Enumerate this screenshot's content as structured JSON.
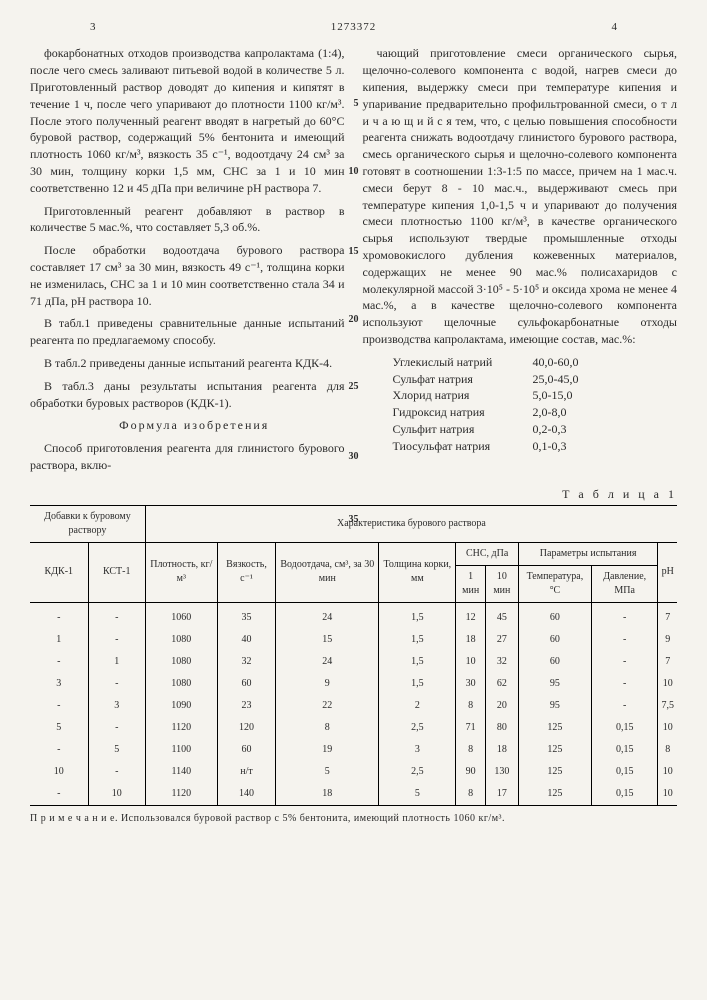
{
  "header": {
    "doc_number": "1273372",
    "left_page": "3",
    "right_page": "4"
  },
  "left_column": {
    "p1": "фокарбонатных отходов производства капролактама (1:4), после чего смесь заливают питьевой водой в количестве 5 л. Приготовленный раствор доводят до кипения и кипятят в течение 1 ч, после чего упаривают до плотности 1100 кг/м³. После этого полученный реагент вводят в нагретый до 60°С буровой раствор, содержащий 5% бентонита и имеющий плотность 1060 кг/м³, вязкость 35 с⁻¹, водоотдачу 24 см³ за 30 мин, толщину корки 1,5 мм, СНС за 1 и 10 мин соответственно 12 и 45 дПа при величине pH раствора 7.",
    "p2": "Приготовленный реагент добавляют в раствор в количестве 5 мас.%, что составляет 5,3 об.%.",
    "p3": "После обработки водоотдача бурового раствора составляет 17 см³ за 30 мин, вязкость 49 с⁻¹, толщина корки не изменилась, СНС за 1 и 10 мин соответственно стала 34 и 71 дПа, pH раствора 10.",
    "p4": "В табл.1 приведены сравнительные данные испытаний реагента по предлагаемому способу.",
    "p5": "В табл.2 приведены данные испытаний реагента КДК-4.",
    "p6": "В табл.3 даны результаты испытания реагента для обработки буровых растворов (КДК-1).",
    "formula_title": "Формула изобретения",
    "p7": "Способ приготовления реагента для глинистого бурового раствора, вклю-"
  },
  "right_column": {
    "p1": "чающий приготовление смеси органического сырья, щелочно-солевого компонента с водой, нагрев смеси до кипения, выдержку смеси при температуре кипения и упаривание предварительно профильтрованной смеси, о т л и ч а ю щ и й с я  тем, что, с целью повышения способности реагента снижать водоотдачу глинистого бурового раствора, смесь органического сырья и щелочно-солевого компонента готовят в соотношении 1:3-1:5 по массе, причем на 1 мас.ч. смеси берут 8 - 10 мас.ч., выдерживают смесь при температуре кипения 1,0-1,5 ч и упаривают до получения смеси плотностью 1100 кг/м³, в качестве органического сырья используют твердые промышленные отходы хромовокислого дубления кожевенных материалов, содержащих не менее 90 мас.% полисахаридов с молекулярной массой 3·10⁵ - 5·10⁵ и оксида хрома не менее 4 мас.%, а в качестве щелочно-солевого компонента используют щелочные сульфокарбонатные отходы производства капролактама, имеющие состав, мас.%:",
    "composition": [
      {
        "label": "Углекислый натрий",
        "value": "40,0-60,0"
      },
      {
        "label": "Сульфат натрия",
        "value": "25,0-45,0"
      },
      {
        "label": "Хлорид натрия",
        "value": "5,0-15,0"
      },
      {
        "label": "Гидроксид натрия",
        "value": "2,0-8,0"
      },
      {
        "label": "Сульфит натрия",
        "value": "0,2-0,3"
      },
      {
        "label": "Тиосульфат натрия",
        "value": "0,1-0,3"
      }
    ]
  },
  "table1": {
    "label": "Т а б л и ц а 1",
    "headers": {
      "group1": "Добавки к буровому раствору",
      "group2": "Характеристика бурового раствора",
      "sub": [
        "КДК-1",
        "КСТ-1",
        "Плотность, кг/м³",
        "Вязкость, с⁻¹",
        "Водоотдача, см³, за 30 мин",
        "Толщина корки, мм"
      ],
      "sns": "СНС, дПа",
      "sns_sub": [
        "1 мин",
        "10 мин"
      ],
      "params": "Параметры испытания",
      "params_sub": [
        "Температура, °С",
        "Давление, МПа"
      ],
      "ph": "pH"
    },
    "rows": [
      [
        "-",
        "-",
        "1060",
        "35",
        "24",
        "1,5",
        "12",
        "45",
        "60",
        "-",
        "7"
      ],
      [
        "1",
        "-",
        "1080",
        "40",
        "15",
        "1,5",
        "18",
        "27",
        "60",
        "-",
        "9"
      ],
      [
        "-",
        "1",
        "1080",
        "32",
        "24",
        "1,5",
        "10",
        "32",
        "60",
        "-",
        "7"
      ],
      [
        "3",
        "-",
        "1080",
        "60",
        "9",
        "1,5",
        "30",
        "62",
        "95",
        "-",
        "10"
      ],
      [
        "-",
        "3",
        "1090",
        "23",
        "22",
        "2",
        "8",
        "20",
        "95",
        "-",
        "7,5"
      ],
      [
        "5",
        "-",
        "1120",
        "120",
        "8",
        "2,5",
        "71",
        "80",
        "125",
        "0,15",
        "10"
      ],
      [
        "-",
        "5",
        "1100",
        "60",
        "19",
        "3",
        "8",
        "18",
        "125",
        "0,15",
        "8"
      ],
      [
        "10",
        "-",
        "1140",
        "н/т",
        "5",
        "2,5",
        "90",
        "130",
        "125",
        "0,15",
        "10"
      ],
      [
        "-",
        "10",
        "1120",
        "140",
        "18",
        "5",
        "8",
        "17",
        "125",
        "0,15",
        "10"
      ]
    ],
    "footnote": "П р и м е ч а н и е. Использовался буровой раствор с 5% бентонита, имеющий плотность 1060 кг/м³."
  },
  "line_markers": {
    "m5": "5",
    "m10": "10",
    "m15": "15",
    "m20": "20",
    "m25": "25",
    "m30": "30",
    "m35": "35"
  }
}
